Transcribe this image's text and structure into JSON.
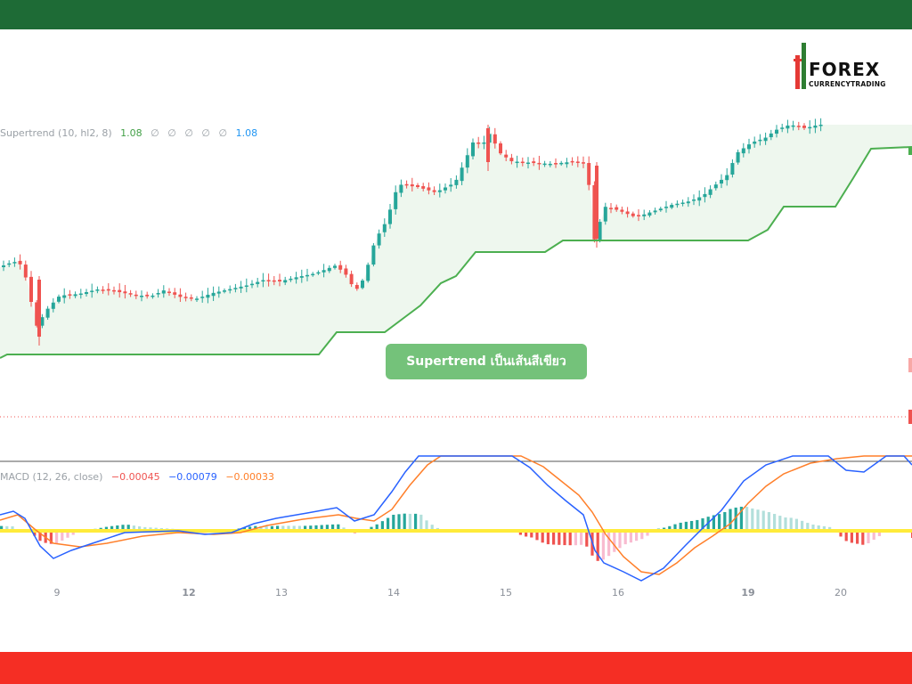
{
  "logo": {
    "word": "FOREX",
    "sub": "CURRENCYTRADING"
  },
  "callout": "Supertrend เป็นเส้นสีเขียว",
  "colors": {
    "header": "#1e6b36",
    "footer": "#f52e24",
    "up": "#26a69a",
    "down": "#ef5350",
    "supertrend": "#4caf50",
    "supertrend_fill": "#eef7ee",
    "macd": "#2962ff",
    "signal": "#ff7f2a",
    "zero_line": "#ffeb3b"
  },
  "legend_main": {
    "name": "Supertrend (10, hl2, 8)",
    "val1": "1.08",
    "nulls": [
      "∅",
      "∅",
      "∅",
      "∅",
      "∅"
    ],
    "val2": "1.08"
  },
  "legend_macd": {
    "name": "MACD (12, 26, close)",
    "hist": "−0.00045",
    "macd": "−0.00079",
    "signal": "−0.00033"
  },
  "chart_data": [
    {
      "type": "line",
      "name_on_chart": "Supertrend (10, hl2, 8)",
      "x_tick_labels": [
        "9",
        "12",
        "13",
        "14",
        "15",
        "16",
        "19",
        "20"
      ],
      "bold_ticks": [
        "12",
        "19"
      ],
      "supertrend": [
        [
          0,
          402
        ],
        [
          8,
          398
        ],
        [
          358,
          398
        ],
        [
          378,
          373
        ],
        [
          432,
          373
        ],
        [
          452,
          358
        ],
        [
          472,
          343
        ],
        [
          495,
          318
        ],
        [
          512,
          310
        ],
        [
          534,
          283
        ],
        [
          612,
          283
        ],
        [
          632,
          270
        ],
        [
          840,
          270
        ],
        [
          862,
          258
        ],
        [
          880,
          232
        ],
        [
          938,
          232
        ],
        [
          958,
          200
        ],
        [
          978,
          167
        ],
        [
          1024,
          165
        ]
      ],
      "close_price_path": [
        [
          0,
          300
        ],
        [
          10,
          296
        ],
        [
          22,
          293
        ],
        [
          30,
          312
        ],
        [
          42,
          366
        ],
        [
          55,
          346
        ],
        [
          68,
          332
        ],
        [
          90,
          330
        ],
        [
          110,
          325
        ],
        [
          130,
          327
        ],
        [
          150,
          331
        ],
        [
          170,
          333
        ],
        [
          185,
          326
        ],
        [
          205,
          334
        ],
        [
          220,
          336
        ],
        [
          240,
          329
        ],
        [
          262,
          324
        ],
        [
          280,
          320
        ],
        [
          298,
          314
        ],
        [
          315,
          316
        ],
        [
          335,
          311
        ],
        [
          355,
          307
        ],
        [
          378,
          298
        ],
        [
          390,
          309
        ],
        [
          400,
          327
        ],
        [
          410,
          312
        ],
        [
          422,
          270
        ],
        [
          435,
          248
        ],
        [
          448,
          207
        ],
        [
          470,
          210
        ],
        [
          490,
          216
        ],
        [
          512,
          205
        ],
        [
          522,
          183
        ],
        [
          532,
          160
        ],
        [
          545,
          160
        ],
        [
          552,
          148
        ],
        [
          560,
          170
        ],
        [
          575,
          181
        ],
        [
          600,
          183
        ],
        [
          620,
          184
        ],
        [
          640,
          182
        ],
        [
          660,
          184
        ],
        [
          668,
          270
        ],
        [
          680,
          232
        ],
        [
          695,
          236
        ],
        [
          715,
          244
        ],
        [
          735,
          237
        ],
        [
          755,
          230
        ],
        [
          775,
          226
        ],
        [
          790,
          220
        ],
        [
          805,
          207
        ],
        [
          818,
          196
        ],
        [
          828,
          172
        ],
        [
          845,
          160
        ],
        [
          860,
          155
        ],
        [
          872,
          146
        ],
        [
          888,
          140
        ],
        [
          905,
          144
        ],
        [
          920,
          140
        ]
      ]
    },
    {
      "type": "bar+line",
      "name_on_chart": "MACD (12, 26, close)",
      "values_shown": {
        "histogram": "−0.00045",
        "macd": "−0.00079",
        "signal": "−0.00033"
      },
      "macd_path": [
        [
          0,
          578
        ],
        [
          15,
          574
        ],
        [
          28,
          582
        ],
        [
          45,
          613
        ],
        [
          60,
          627
        ],
        [
          80,
          618
        ],
        [
          110,
          608
        ],
        [
          140,
          598
        ],
        [
          170,
          597
        ],
        [
          200,
          596
        ],
        [
          230,
          600
        ],
        [
          260,
          598
        ],
        [
          285,
          588
        ],
        [
          310,
          582
        ],
        [
          345,
          576
        ],
        [
          378,
          570
        ],
        [
          398,
          585
        ],
        [
          420,
          578
        ],
        [
          440,
          552
        ],
        [
          455,
          530
        ],
        [
          470,
          512
        ],
        [
          575,
          512
        ],
        [
          595,
          525
        ],
        [
          615,
          545
        ],
        [
          635,
          562
        ],
        [
          655,
          578
        ],
        [
          668,
          618
        ],
        [
          678,
          632
        ],
        [
          700,
          642
        ],
        [
          720,
          652
        ],
        [
          745,
          638
        ],
        [
          770,
          612
        ],
        [
          790,
          592
        ],
        [
          810,
          573
        ],
        [
          835,
          540
        ],
        [
          860,
          522
        ],
        [
          890,
          512
        ],
        [
          930,
          512
        ],
        [
          950,
          528
        ],
        [
          970,
          530
        ],
        [
          995,
          512
        ],
        [
          1015,
          512
        ],
        [
          1024,
          522
        ]
      ],
      "signal_path": [
        [
          0,
          584
        ],
        [
          20,
          578
        ],
        [
          40,
          595
        ],
        [
          60,
          610
        ],
        [
          90,
          614
        ],
        [
          120,
          610
        ],
        [
          160,
          602
        ],
        [
          200,
          598
        ],
        [
          240,
          600
        ],
        [
          270,
          598
        ],
        [
          300,
          590
        ],
        [
          340,
          583
        ],
        [
          380,
          578
        ],
        [
          400,
          582
        ],
        [
          420,
          585
        ],
        [
          440,
          572
        ],
        [
          460,
          545
        ],
        [
          480,
          522
        ],
        [
          495,
          512
        ],
        [
          585,
          512
        ],
        [
          610,
          524
        ],
        [
          630,
          540
        ],
        [
          650,
          556
        ],
        [
          665,
          575
        ],
        [
          680,
          600
        ],
        [
          700,
          625
        ],
        [
          720,
          642
        ],
        [
          740,
          645
        ],
        [
          760,
          632
        ],
        [
          780,
          615
        ],
        [
          800,
          602
        ],
        [
          820,
          588
        ],
        [
          840,
          565
        ],
        [
          860,
          546
        ],
        [
          880,
          532
        ],
        [
          910,
          520
        ],
        [
          940,
          515
        ],
        [
          970,
          512
        ],
        [
          1024,
          512
        ]
      ],
      "zero_line_y": 596
    }
  ]
}
